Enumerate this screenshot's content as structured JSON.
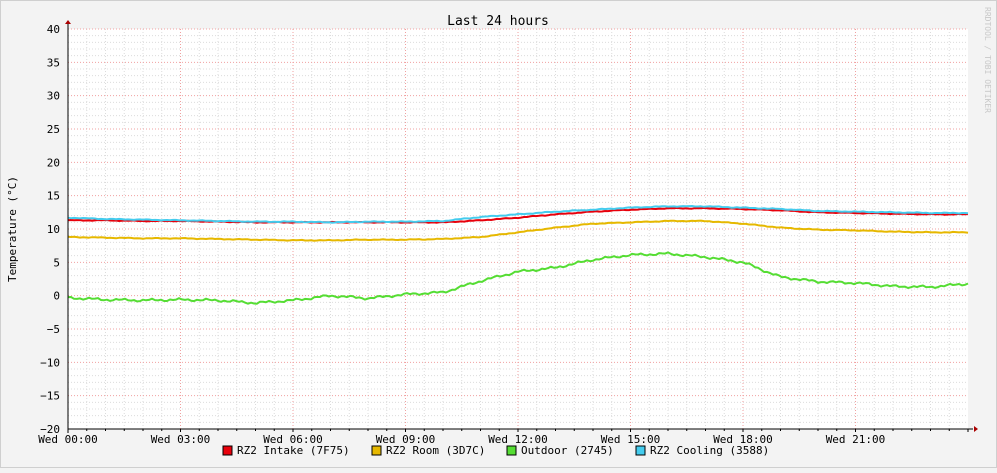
{
  "chart_data": {
    "type": "line",
    "title": "Last 24 hours",
    "ylabel": "Temperature (°C)",
    "xlabel": "",
    "watermark": "RRDTOOL / TOBI OETIKER",
    "ylim": [
      -20,
      40
    ],
    "y_ticks": [
      40,
      35,
      30,
      25,
      20,
      15,
      10,
      5,
      0,
      -5,
      -10,
      -15,
      -20
    ],
    "y_tick_labels": [
      "40",
      "35",
      "30",
      "25",
      "20",
      "15",
      "10",
      "5",
      "0",
      "−5",
      "−10",
      "−15",
      "−20"
    ],
    "x_range_hours": [
      0,
      24
    ],
    "x_ticks": [
      0,
      3,
      6,
      9,
      12,
      15,
      18,
      21
    ],
    "x_tick_labels": [
      "Wed 00:00",
      "Wed 03:00",
      "Wed 06:00",
      "Wed 09:00",
      "Wed 12:00",
      "Wed 15:00",
      "Wed 18:00",
      "Wed 21:00"
    ],
    "grid": true,
    "legend_position": "bottom",
    "x": [
      0,
      1,
      2,
      3,
      4,
      5,
      6,
      7,
      8,
      9,
      10,
      11,
      12,
      13,
      14,
      15,
      16,
      17,
      18,
      19,
      20,
      21,
      22,
      23,
      24
    ],
    "series": [
      {
        "name": "RZ2 Intake (7F75)",
        "color": "#e8000b",
        "values": [
          11.3,
          11.3,
          11.2,
          11.2,
          11.1,
          11.0,
          11.0,
          11.0,
          11.0,
          11.0,
          11.0,
          11.3,
          11.7,
          12.2,
          12.6,
          12.9,
          13.1,
          13.1,
          13.0,
          12.8,
          12.5,
          12.4,
          12.3,
          12.2,
          12.2
        ]
      },
      {
        "name": "RZ2 Room (3D7C)",
        "color": "#e6b800",
        "values": [
          8.8,
          8.7,
          8.6,
          8.6,
          8.5,
          8.4,
          8.3,
          8.3,
          8.4,
          8.4,
          8.5,
          8.8,
          9.5,
          10.2,
          10.8,
          11.0,
          11.2,
          11.2,
          10.8,
          10.2,
          9.9,
          9.8,
          9.6,
          9.5,
          9.5
        ]
      },
      {
        "name": "Outdoor (2745)",
        "color": "#55dd33",
        "values": [
          -0.3,
          -0.6,
          -0.7,
          -0.6,
          -0.7,
          -1.1,
          -0.7,
          0.0,
          -0.4,
          0.2,
          0.5,
          2.2,
          3.6,
          4.2,
          5.4,
          6.1,
          6.3,
          5.8,
          5.0,
          2.8,
          2.1,
          1.9,
          1.4,
          1.3,
          1.8
        ]
      },
      {
        "name": "RZ2 Cooling (3588)",
        "color": "#44ccee",
        "values": [
          11.7,
          11.5,
          11.4,
          11.3,
          11.2,
          11.1,
          11.1,
          11.0,
          11.1,
          11.1,
          11.2,
          11.8,
          12.2,
          12.6,
          12.9,
          13.2,
          13.4,
          13.4,
          13.2,
          13.0,
          12.7,
          12.6,
          12.5,
          12.4,
          12.4
        ]
      }
    ]
  }
}
